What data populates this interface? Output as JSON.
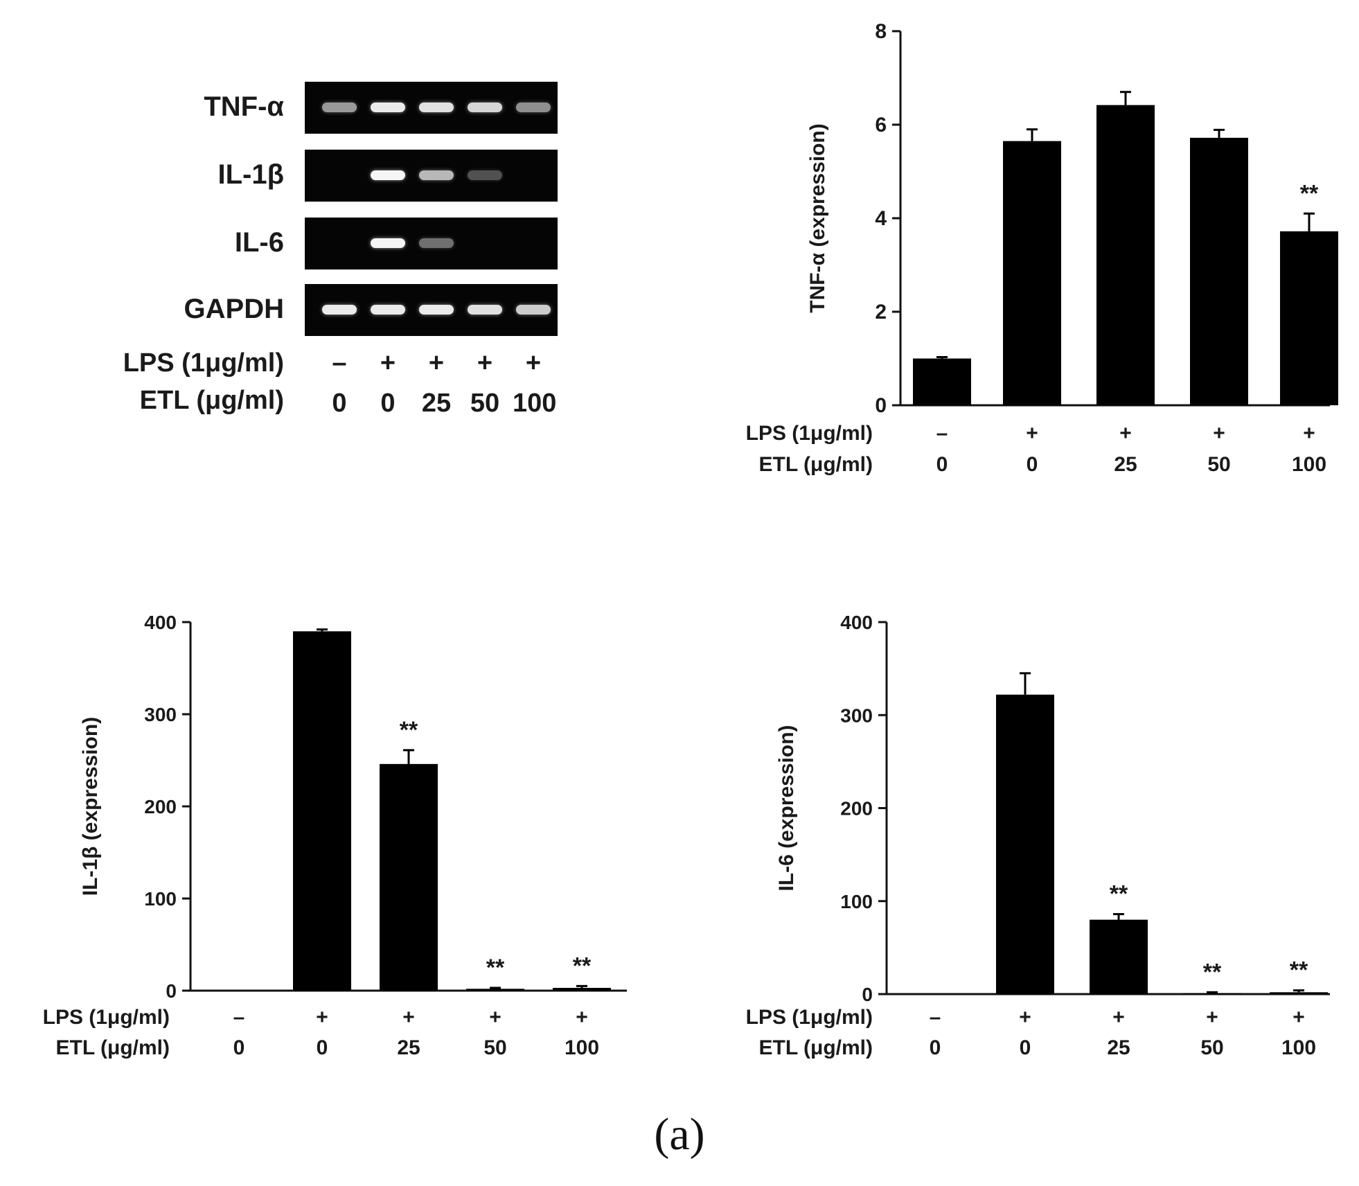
{
  "gel": {
    "rows": [
      {
        "label": "TNF-α",
        "intensities": [
          0.55,
          0.95,
          0.9,
          0.85,
          0.5
        ]
      },
      {
        "label": "IL-1β",
        "intensities": [
          0,
          1.0,
          0.7,
          0.2,
          0
        ]
      },
      {
        "label": "IL-6",
        "intensities": [
          0,
          1.0,
          0.35,
          0,
          0
        ]
      },
      {
        "label": "GAPDH",
        "intensities": [
          0.95,
          0.95,
          0.95,
          0.9,
          0.8
        ]
      }
    ],
    "lps_label": "LPS (1μg/ml)",
    "etl_label": "ETL (μg/ml)",
    "lps_values": [
      "–",
      "+",
      "+",
      "+",
      "+"
    ],
    "etl_values": [
      "0",
      "0",
      "25",
      "50",
      "100"
    ]
  },
  "chart_data": [
    {
      "type": "bar",
      "title": "",
      "ylabel": "TNF-α (expression)",
      "xlabel": "",
      "ylim": [
        0,
        8
      ],
      "yticks": [
        "0",
        "2",
        "4",
        "6",
        "8"
      ],
      "values": [
        1.0,
        5.65,
        6.42,
        5.72,
        3.72
      ],
      "errors": [
        0.03,
        0.25,
        0.28,
        0.17,
        0.38
      ],
      "annotations": [
        "",
        "",
        "",
        "",
        "**"
      ],
      "lps_label": "LPS (1μg/ml)",
      "etl_label": "ETL (μg/ml)",
      "lps_values": [
        "–",
        "+",
        "+",
        "+",
        "+"
      ],
      "etl_values": [
        "0",
        "0",
        "25",
        "50",
        "100"
      ]
    },
    {
      "type": "bar",
      "title": "",
      "ylabel": "IL-1β (expression)",
      "xlabel": "",
      "ylim": [
        0,
        400
      ],
      "yticks": [
        "0",
        "100",
        "200",
        "300",
        "400"
      ],
      "values": [
        0,
        390,
        246,
        2,
        3
      ],
      "errors": [
        0,
        2,
        15,
        1,
        2
      ],
      "annotations": [
        "",
        "",
        "**",
        "**",
        "**"
      ],
      "lps_label": "LPS (1μg/ml)",
      "etl_label": "ETL (μg/ml)",
      "lps_values": [
        "–",
        "+",
        "+",
        "+",
        "+"
      ],
      "etl_values": [
        "0",
        "0",
        "25",
        "50",
        "100"
      ]
    },
    {
      "type": "bar",
      "title": "",
      "ylabel": "IL-6 (expression)",
      "xlabel": "",
      "ylim": [
        0,
        400
      ],
      "yticks": [
        "0",
        "100",
        "200",
        "300",
        "400"
      ],
      "values": [
        0,
        322,
        80,
        1,
        2
      ],
      "errors": [
        0,
        23,
        6,
        1,
        2
      ],
      "annotations": [
        "",
        "",
        "**",
        "**",
        "**"
      ],
      "lps_label": "LPS (1μg/ml)",
      "etl_label": "ETL (μg/ml)",
      "lps_values": [
        "–",
        "+",
        "+",
        "+",
        "+"
      ],
      "etl_values": [
        "0",
        "0",
        "25",
        "50",
        "100"
      ]
    }
  ],
  "caption": "(a)"
}
